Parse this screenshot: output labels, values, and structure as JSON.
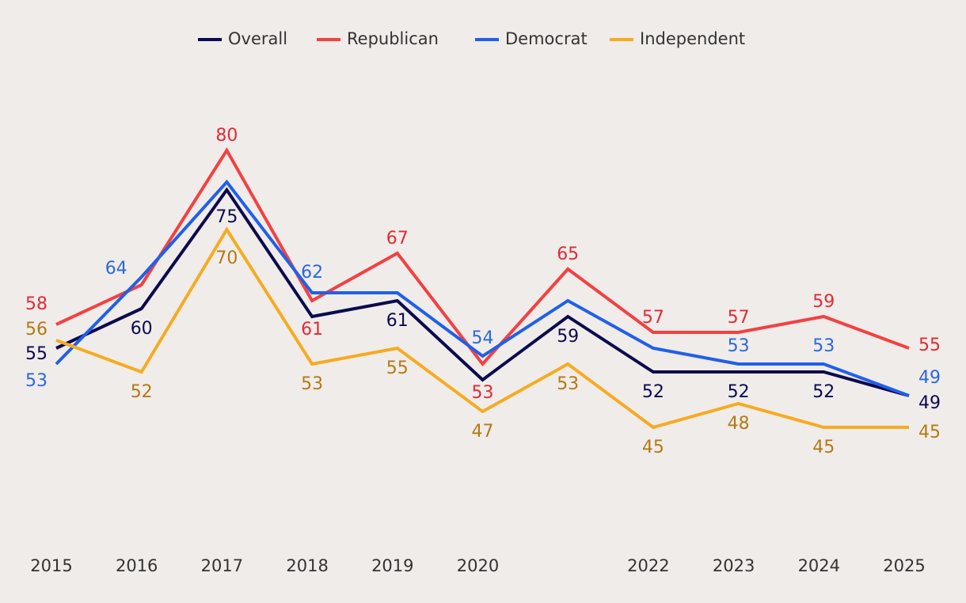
{
  "chart_data": {
    "type": "line",
    "categories": [
      "2015",
      "2016",
      "2017",
      "2018",
      "2019",
      "2020",
      null,
      "2022",
      "2023",
      "2024",
      "2025"
    ],
    "ylim": [
      30,
      90
    ],
    "series": [
      {
        "name": "Overall",
        "color": "#0c0a4e",
        "label_color": "#0c0a4e",
        "values": [
          55,
          60,
          75,
          59,
          61,
          51,
          59,
          52,
          52,
          52,
          49
        ],
        "value_labels": [
          55,
          60,
          75,
          null,
          61,
          null,
          59,
          52,
          52,
          52,
          49
        ]
      },
      {
        "name": "Republican",
        "color": "#f24141",
        "label_color": "#e02b35",
        "values": [
          58,
          63,
          80,
          61,
          67,
          53,
          65,
          57,
          57,
          59,
          55
        ],
        "value_labels": [
          58,
          null,
          80,
          61,
          67,
          53,
          65,
          57,
          57,
          59,
          55
        ]
      },
      {
        "name": "Democrat",
        "color": "#2060e8",
        "label_color": "#2a68e0",
        "values": [
          53,
          64,
          76,
          62,
          62,
          54,
          61,
          55,
          53,
          53,
          49
        ],
        "value_labels": [
          53,
          64,
          null,
          62,
          null,
          54,
          null,
          null,
          53,
          53,
          49
        ]
      },
      {
        "name": "Independent",
        "color": "#f6ab22",
        "label_color": "#b37a12",
        "values": [
          56,
          52,
          70,
          53,
          55,
          47,
          53,
          45,
          48,
          45,
          45
        ],
        "value_labels": [
          56,
          52,
          70,
          53,
          55,
          47,
          53,
          45,
          48,
          45,
          45
        ]
      }
    ]
  }
}
